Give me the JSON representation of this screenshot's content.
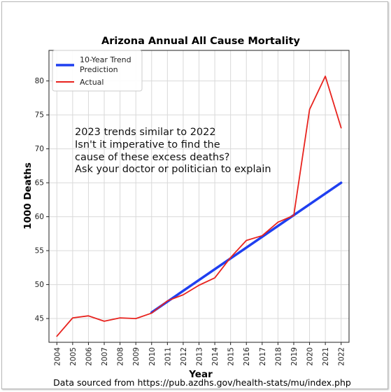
{
  "chart_data": {
    "type": "line",
    "title": "Arizona Annual All Cause Mortality",
    "xlabel": "Year",
    "ylabel": "1000 Deaths",
    "xlim": [
      2003.5,
      2022.5
    ],
    "ylim": [
      41.5,
      84.5
    ],
    "x_ticks": [
      2004,
      2005,
      2006,
      2007,
      2008,
      2009,
      2010,
      2011,
      2012,
      2013,
      2014,
      2015,
      2016,
      2017,
      2018,
      2019,
      2020,
      2021,
      2022
    ],
    "y_ticks": [
      45,
      50,
      55,
      60,
      65,
      70,
      75,
      80
    ],
    "grid": true,
    "legend_position": "top-left",
    "series": [
      {
        "name": "10-Year Trend Prediction",
        "color": "#1f3ff0",
        "x": [
          2010,
          2022
        ],
        "y": [
          45.9,
          65.0
        ]
      },
      {
        "name": "Actual",
        "color": "#e8231e",
        "x": [
          2004,
          2005,
          2006,
          2007,
          2008,
          2009,
          2010,
          2011,
          2012,
          2013,
          2014,
          2015,
          2016,
          2017,
          2018,
          2019,
          2020,
          2021,
          2022
        ],
        "y": [
          42.4,
          45.1,
          45.4,
          44.6,
          45.1,
          45.0,
          45.8,
          47.6,
          48.5,
          49.9,
          51.0,
          54.0,
          56.5,
          57.2,
          59.2,
          60.2,
          75.8,
          80.7,
          73.1
        ]
      }
    ],
    "annotation": [
      "2023 trends similar to 2022",
      "Isn't it imperative to find the",
      "cause of these excess deaths?",
      "Ask your doctor or politician to explain"
    ],
    "source_note": "Data sourced from https://pub.azdhs.gov/health-stats/mu/index.php"
  }
}
